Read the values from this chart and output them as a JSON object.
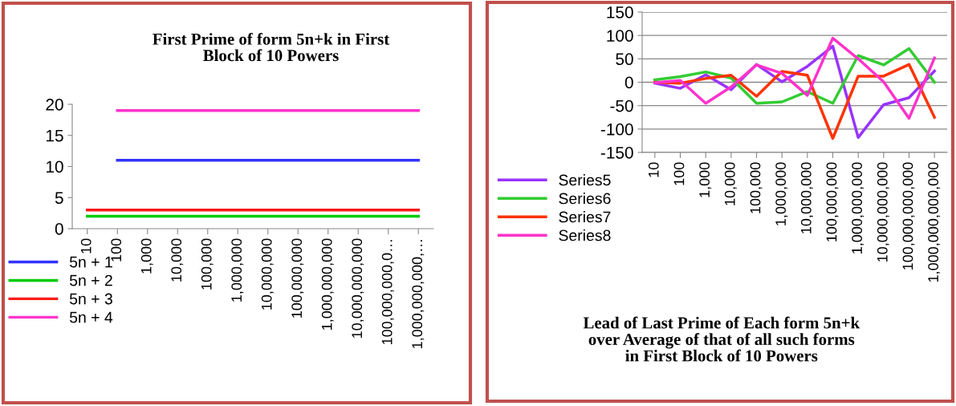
{
  "chart_data": [
    {
      "type": "line",
      "title": "First Prime of form 5n+k in First\nBlock of 10 Powers",
      "categories": [
        "10",
        "100",
        "1,000",
        "10,000",
        "100,000",
        "1,000,000",
        "10,000,000",
        "100,000,000",
        "1,000,000,000",
        "10,000,000,000",
        "100,000,000,0…",
        "1,000,000,000,…"
      ],
      "series": [
        {
          "name": "5n + 1",
          "color": "#3333ff",
          "values": [
            null,
            11,
            11,
            11,
            11,
            11,
            11,
            11,
            11,
            11,
            11,
            11
          ]
        },
        {
          "name": "5n + 2",
          "color": "#00cc00",
          "values": [
            2,
            2,
            2,
            2,
            2,
            2,
            2,
            2,
            2,
            2,
            2,
            2
          ]
        },
        {
          "name": "5n + 3",
          "color": "#ff1a1a",
          "values": [
            3,
            3,
            3,
            3,
            3,
            3,
            3,
            3,
            3,
            3,
            3,
            3
          ]
        },
        {
          "name": "5n + 4",
          "color": "#ff33cc",
          "values": [
            null,
            19,
            19,
            19,
            19,
            19,
            19,
            19,
            19,
            19,
            19,
            19
          ]
        }
      ],
      "ylim": [
        0,
        20
      ],
      "yticks": [
        0,
        5,
        10,
        15,
        20
      ],
      "grid": false,
      "legend": "bottom left",
      "marker": "none",
      "line_style": "solid"
    },
    {
      "type": "line",
      "title": "Lead of Last Prime of Each form 5n+k\nover Average of that of all such forms\nin First Block of 10 Powers",
      "categories": [
        "10",
        "100",
        "1,000",
        "10,000",
        "100,000",
        "1,000,000",
        "10,000,000",
        "100,000,000",
        "1,000,000,000",
        "10,000,000,000",
        "100,000,000,000",
        "1,000,000,000,000"
      ],
      "series": [
        {
          "name": "Series5",
          "color": "#9933ff",
          "values": [
            -2,
            -13,
            16,
            -16,
            38,
            1,
            34,
            77,
            -118,
            -48,
            -33,
            24
          ]
        },
        {
          "name": "Series6",
          "color": "#33cc33",
          "values": [
            5,
            12,
            22,
            9,
            -45,
            -42,
            -20,
            -45,
            57,
            37,
            72,
            0
          ]
        },
        {
          "name": "Series7",
          "color": "#ff3300",
          "values": [
            0,
            -2,
            8,
            15,
            -30,
            23,
            15,
            -120,
            13,
            13,
            38,
            -75
          ]
        },
        {
          "name": "Series8",
          "color": "#ff33cc",
          "values": [
            -1,
            4,
            -45,
            -10,
            37,
            19,
            -28,
            94,
            50,
            1,
            -77,
            52
          ]
        }
      ],
      "ylim": [
        -150,
        150
      ],
      "yticks": [
        -150,
        -100,
        -50,
        0,
        50,
        100,
        150
      ],
      "grid": "y",
      "legend": "bottom left",
      "marker": "none",
      "line_style": "solid"
    }
  ]
}
